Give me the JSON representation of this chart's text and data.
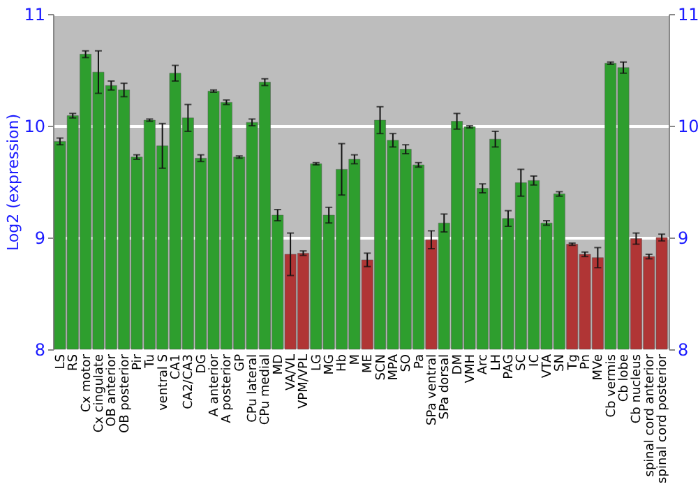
{
  "chart_data": {
    "type": "bar",
    "ylabel": "Log2 (expression)",
    "categories": [
      "LS",
      "RS",
      "Cx motor",
      "Cx cingulate",
      "OB anterior",
      "OB posterior",
      "Pir",
      "Tu",
      "ventral S",
      "CA1",
      "CA2/CA3",
      "DG",
      "A anterior",
      "A posterior",
      "GP",
      "CPu lateral",
      "CPu medial",
      "MD",
      "VA/VL",
      "VPM/VPL",
      "LG",
      "MG",
      "Hb",
      "M",
      "ME",
      "SCN",
      "MPA",
      "SO",
      "Pa",
      "SPa ventral",
      "SPa dorsal",
      "DM",
      "VMH",
      "Arc",
      "LH",
      "PAG",
      "SC",
      "IC",
      "VTA",
      "SN",
      "Tg",
      "Pn",
      "MVe",
      "Cb vermis",
      "Cb lobe",
      "Cb nucleus",
      "spinal cord anterior",
      "spinal cord posterior"
    ],
    "values": [
      9.86,
      10.09,
      10.64,
      10.48,
      10.36,
      10.32,
      9.72,
      10.05,
      9.82,
      10.47,
      10.07,
      9.71,
      10.31,
      10.21,
      9.72,
      10.03,
      10.39,
      9.2,
      8.85,
      8.86,
      9.66,
      9.2,
      9.61,
      9.7,
      8.8,
      10.05,
      9.87,
      9.79,
      9.65,
      8.98,
      9.13,
      10.04,
      9.99,
      9.44,
      9.88,
      9.17,
      9.49,
      9.51,
      9.13,
      9.39,
      8.94,
      8.85,
      8.82,
      10.56,
      10.52,
      8.99,
      8.83,
      9.0
    ],
    "errors": [
      0.03,
      0.02,
      0.03,
      0.19,
      0.04,
      0.06,
      0.02,
      0.01,
      0.2,
      0.07,
      0.12,
      0.03,
      0.01,
      0.02,
      0.01,
      0.03,
      0.03,
      0.05,
      0.19,
      0.02,
      0.01,
      0.07,
      0.23,
      0.04,
      0.06,
      0.12,
      0.06,
      0.04,
      0.02,
      0.08,
      0.08,
      0.07,
      0.01,
      0.04,
      0.07,
      0.07,
      0.12,
      0.04,
      0.02,
      0.02,
      0.01,
      0.02,
      0.09,
      0.01,
      0.05,
      0.05,
      0.02,
      0.03
    ],
    "colors": [
      "#2e9e2e",
      "#2e9e2e",
      "#2e9e2e",
      "#2e9e2e",
      "#2e9e2e",
      "#2e9e2e",
      "#2e9e2e",
      "#2e9e2e",
      "#2e9e2e",
      "#2e9e2e",
      "#2e9e2e",
      "#2e9e2e",
      "#2e9e2e",
      "#2e9e2e",
      "#2e9e2e",
      "#2e9e2e",
      "#2e9e2e",
      "#2e9e2e",
      "#b03535",
      "#b03535",
      "#2e9e2e",
      "#2e9e2e",
      "#2e9e2e",
      "#2e9e2e",
      "#b03535",
      "#2e9e2e",
      "#2e9e2e",
      "#2e9e2e",
      "#2e9e2e",
      "#b03535",
      "#2e9e2e",
      "#2e9e2e",
      "#2e9e2e",
      "#2e9e2e",
      "#2e9e2e",
      "#2e9e2e",
      "#2e9e2e",
      "#2e9e2e",
      "#2e9e2e",
      "#2e9e2e",
      "#b03535",
      "#b03535",
      "#b03535",
      "#2e9e2e",
      "#2e9e2e",
      "#b03535",
      "#b03535",
      "#b03535"
    ],
    "ylim": [
      8,
      11
    ],
    "yticks": [
      8,
      9,
      10,
      11
    ],
    "y2lim": [
      8,
      11
    ],
    "y2ticks": [
      8,
      9,
      10,
      11
    ],
    "grid": "y"
  }
}
